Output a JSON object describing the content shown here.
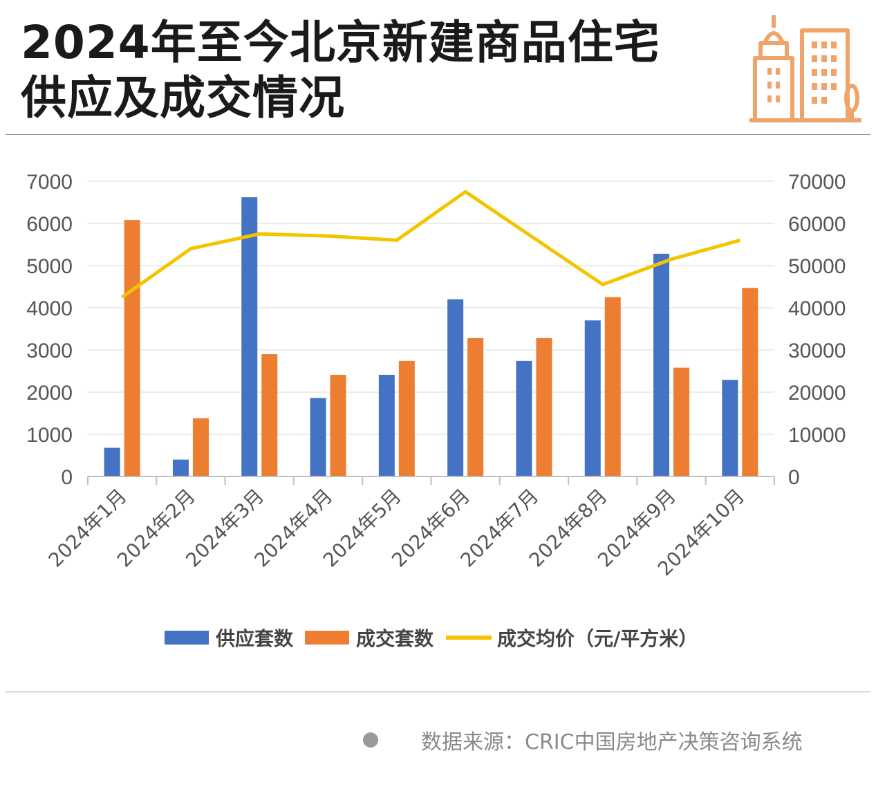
{
  "header": {
    "title_line1": "2024年至今北京新建商品住宅",
    "title_line2": "供应及成交情况"
  },
  "colors": {
    "supply": "#4472C4",
    "deals": "#ED7D31",
    "price": "#F2C500",
    "icon": "#F0A46A"
  },
  "icon": "building-icon",
  "chart_data": {
    "type": "bar",
    "categories": [
      "2024年1月",
      "2024年2月",
      "2024年3月",
      "2024年4月",
      "2024年5月",
      "2024年6月",
      "2024年7月",
      "2024年8月",
      "2024年9月",
      "2024年10月"
    ],
    "series": [
      {
        "name": "供应套数",
        "type": "bar",
        "axis": "left",
        "values": [
          680,
          400,
          6620,
          1860,
          2410,
          4200,
          2740,
          3700,
          5280,
          2290
        ]
      },
      {
        "name": "成交套数",
        "type": "bar",
        "axis": "left",
        "values": [
          6080,
          1380,
          2900,
          2410,
          2740,
          3280,
          3280,
          4250,
          2580,
          4470
        ]
      },
      {
        "name": "成交均价（元/平方米）",
        "type": "line",
        "axis": "right",
        "values": [
          42500,
          54000,
          57500,
          57000,
          56000,
          67500,
          56500,
          45500,
          51500,
          56000
        ]
      }
    ],
    "yticks_left": [
      "0",
      "1000",
      "2000",
      "3000",
      "4000",
      "5000",
      "6000",
      "7000"
    ],
    "yticks_right": [
      "0",
      "10000",
      "20000",
      "30000",
      "40000",
      "50000",
      "60000",
      "70000"
    ],
    "ylim_left": [
      0,
      7000
    ],
    "ylim_right": [
      0,
      70000
    ],
    "grid": true,
    "legend_position": "bottom"
  },
  "source": {
    "text": "数据来源：CRIC中国房地产决策咨询系统"
  }
}
